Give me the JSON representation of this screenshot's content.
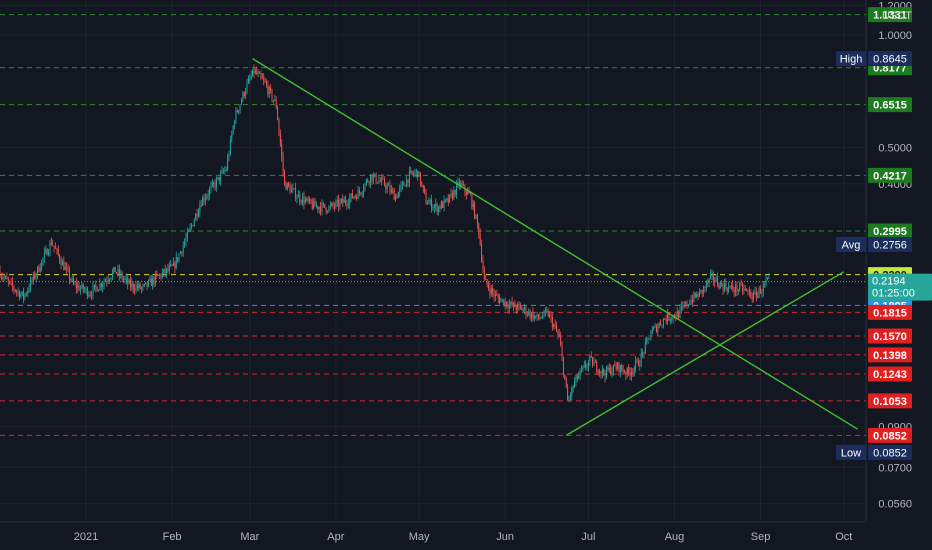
{
  "chart_data": {
    "type": "candlestick",
    "currency": "USDT",
    "y_scale": "log",
    "ylim": [
      0.05,
      1.24
    ],
    "x_range": [
      "2020-12-01",
      "2021-10-09"
    ],
    "x_ticks": [
      {
        "date": "2021-01-01",
        "label": "2021"
      },
      {
        "date": "2021-02-01",
        "label": "Feb"
      },
      {
        "date": "2021-03-01",
        "label": "Mar"
      },
      {
        "date": "2021-04-01",
        "label": "Apr"
      },
      {
        "date": "2021-05-01",
        "label": "May"
      },
      {
        "date": "2021-06-01",
        "label": "Jun"
      },
      {
        "date": "2021-07-01",
        "label": "Jul"
      },
      {
        "date": "2021-08-01",
        "label": "Aug"
      },
      {
        "date": "2021-09-01",
        "label": "Sep"
      },
      {
        "date": "2021-10-01",
        "label": "Oct"
      }
    ],
    "y_ticks": [
      {
        "value": 1.2,
        "label": "1.2000"
      },
      {
        "value": 1.0,
        "label": "1.0000"
      },
      {
        "value": 0.5,
        "label": "0.5000"
      },
      {
        "value": 0.4,
        "label": "0.4000"
      },
      {
        "value": 0.09,
        "label": "0.0900"
      },
      {
        "value": 0.07,
        "label": "0.0700"
      },
      {
        "value": 0.056,
        "label": "0.0560"
      }
    ],
    "price_anchors": [
      [
        "2020-12-01",
        0.235
      ],
      [
        "2020-12-05",
        0.215
      ],
      [
        "2020-12-10",
        0.2
      ],
      [
        "2020-12-15",
        0.235
      ],
      [
        "2020-12-20",
        0.28
      ],
      [
        "2020-12-24",
        0.245
      ],
      [
        "2020-12-28",
        0.215
      ],
      [
        "2021-01-03",
        0.205
      ],
      [
        "2021-01-08",
        0.22
      ],
      [
        "2021-01-12",
        0.235
      ],
      [
        "2021-01-17",
        0.215
      ],
      [
        "2021-01-22",
        0.21
      ],
      [
        "2021-01-27",
        0.225
      ],
      [
        "2021-02-02",
        0.24
      ],
      [
        "2021-02-07",
        0.29
      ],
      [
        "2021-02-12",
        0.36
      ],
      [
        "2021-02-17",
        0.4
      ],
      [
        "2021-02-21",
        0.44
      ],
      [
        "2021-02-24",
        0.6
      ],
      [
        "2021-02-28",
        0.72
      ],
      [
        "2021-03-03",
        0.8
      ],
      [
        "2021-03-07",
        0.74
      ],
      [
        "2021-03-11",
        0.65
      ],
      [
        "2021-03-14",
        0.4
      ],
      [
        "2021-03-19",
        0.37
      ],
      [
        "2021-03-24",
        0.35
      ],
      [
        "2021-03-30",
        0.345
      ],
      [
        "2021-04-05",
        0.36
      ],
      [
        "2021-04-10",
        0.38
      ],
      [
        "2021-04-14",
        0.42
      ],
      [
        "2021-04-19",
        0.4
      ],
      [
        "2021-04-23",
        0.37
      ],
      [
        "2021-04-28",
        0.42
      ],
      [
        "2021-05-01",
        0.43
      ],
      [
        "2021-05-04",
        0.36
      ],
      [
        "2021-05-08",
        0.345
      ],
      [
        "2021-05-12",
        0.36
      ],
      [
        "2021-05-16",
        0.4
      ],
      [
        "2021-05-20",
        0.37
      ],
      [
        "2021-05-23",
        0.3
      ],
      [
        "2021-05-25",
        0.22
      ],
      [
        "2021-05-29",
        0.2
      ],
      [
        "2021-06-03",
        0.19
      ],
      [
        "2021-06-08",
        0.185
      ],
      [
        "2021-06-13",
        0.175
      ],
      [
        "2021-06-17",
        0.18
      ],
      [
        "2021-06-21",
        0.155
      ],
      [
        "2021-06-24",
        0.105
      ],
      [
        "2021-06-27",
        0.12
      ],
      [
        "2021-07-02",
        0.135
      ],
      [
        "2021-07-07",
        0.125
      ],
      [
        "2021-07-12",
        0.13
      ],
      [
        "2021-07-16",
        0.125
      ],
      [
        "2021-07-20",
        0.135
      ],
      [
        "2021-07-24",
        0.16
      ],
      [
        "2021-07-29",
        0.175
      ],
      [
        "2021-08-03",
        0.18
      ],
      [
        "2021-08-07",
        0.195
      ],
      [
        "2021-08-11",
        0.205
      ],
      [
        "2021-08-15",
        0.225
      ],
      [
        "2021-08-18",
        0.215
      ],
      [
        "2021-08-22",
        0.21
      ],
      [
        "2021-08-26",
        0.21
      ],
      [
        "2021-08-30",
        0.2
      ],
      [
        "2021-09-02",
        0.21
      ],
      [
        "2021-09-04",
        0.2194
      ]
    ],
    "trendlines": [
      {
        "name": "descending-resistance",
        "from": [
          "2021-03-02",
          0.8645
        ],
        "to": [
          "2021-10-06",
          0.0885
        ],
        "color": "#41c230"
      },
      {
        "name": "ascending-support",
        "from": [
          "2021-06-23",
          0.0852
        ],
        "to": [
          "2021-10-01",
          0.233
        ],
        "color": "#41c230"
      }
    ],
    "levels": [
      {
        "value": 1.1331,
        "label": "1.1331",
        "line_color": "#2f8a2f",
        "tag_bg": "#1e7a1e",
        "tag_text": "#ffffff"
      },
      {
        "value": 0.8177,
        "label": "0.8177",
        "line_color": "#2f8a2f",
        "tag_bg": "#1e7a1e",
        "tag_text": "#ffffff"
      },
      {
        "value": 0.6515,
        "label": "0.6515",
        "line_color": "#2f8a2f",
        "tag_bg": "#1e7a1e",
        "tag_text": "#ffffff"
      },
      {
        "value": 0.4217,
        "label": "0.4217",
        "line_color": "#2f8a2f",
        "tag_bg": "#1e7a1e",
        "tag_text": "#ffffff"
      },
      {
        "value": 0.2995,
        "label": "0.2995",
        "line_color": "#2f8a2f",
        "tag_bg": "#1e7a1e",
        "tag_text": "#ffffff"
      },
      {
        "value": 0.229,
        "label": "0.2290",
        "line_color": "#d9d936",
        "tag_bg": "#c8e63c",
        "tag_text": "#131722"
      },
      {
        "value": 0.1895,
        "label": "0.1895",
        "line_color": "#2196f3",
        "tag_bg": "#2196f3",
        "tag_text": "#ffffff"
      },
      {
        "value": 0.1815,
        "label": "0.1815",
        "line_color": "#d42a2a",
        "tag_bg": "#e02020",
        "tag_text": "#ffffff"
      },
      {
        "value": 0.157,
        "label": "0.1570",
        "line_color": "#d42a2a",
        "tag_bg": "#e02020",
        "tag_text": "#ffffff"
      },
      {
        "value": 0.1398,
        "label": "0.1398",
        "line_color": "#d42a2a",
        "tag_bg": "#e02020",
        "tag_text": "#ffffff"
      },
      {
        "value": 0.1243,
        "label": "0.1243",
        "line_color": "#d42a2a",
        "tag_bg": "#e02020",
        "tag_text": "#ffffff"
      },
      {
        "value": 0.1053,
        "label": "0.1053",
        "line_color": "#d42a2a",
        "tag_bg": "#e02020",
        "tag_text": "#ffffff"
      },
      {
        "value": 0.0852,
        "label": "0.0852",
        "line_color": "#d42a2a",
        "tag_bg": "#e02020",
        "tag_text": "#ffffff"
      }
    ],
    "stat_tags": [
      {
        "name": "High",
        "value": 0.8645,
        "label": "0.8645"
      },
      {
        "name": "Avg",
        "value": 0.2756,
        "label": "0.2756"
      },
      {
        "name": "Low",
        "value": 0.0852,
        "label": "0.0852"
      }
    ],
    "last_price": {
      "value": 0.2194,
      "label": "0.2194",
      "countdown": "01:25:00",
      "tag_bg": "#26a69a"
    },
    "colors": {
      "background": "#131722",
      "grid": "#1e2230",
      "up": "#26a69a",
      "down": "#ef5350",
      "axis_text": "#b2b5be",
      "tag_dark": "#1b2d5a"
    }
  }
}
